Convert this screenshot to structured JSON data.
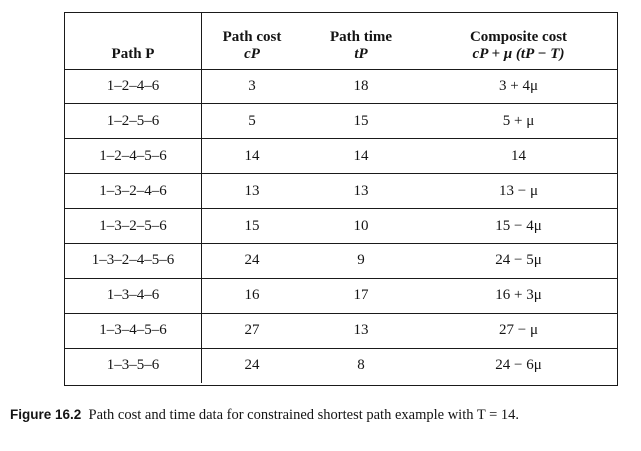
{
  "table": {
    "headers": {
      "path": {
        "line1": "Path P"
      },
      "cost": {
        "line1": "Path cost",
        "line2": "cP"
      },
      "time": {
        "line1": "Path time",
        "line2": "tP"
      },
      "composite": {
        "line1": "Composite cost",
        "line2": "cP + μ (tP − T)"
      }
    },
    "rows": [
      {
        "path": "1–2–4–6",
        "cost": "3",
        "time": "18",
        "composite": "3 + 4μ"
      },
      {
        "path": "1–2–5–6",
        "cost": "5",
        "time": "15",
        "composite": "5 + μ"
      },
      {
        "path": "1–2–4–5–6",
        "cost": "14",
        "time": "14",
        "composite": "14"
      },
      {
        "path": "1–3–2–4–6",
        "cost": "13",
        "time": "13",
        "composite": "13 − μ"
      },
      {
        "path": "1–3–2–5–6",
        "cost": "15",
        "time": "10",
        "composite": "15 − 4μ"
      },
      {
        "path": "1–3–2–4–5–6",
        "cost": "24",
        "time": "9",
        "composite": "24 − 5μ"
      },
      {
        "path": "1–3–4–6",
        "cost": "16",
        "time": "17",
        "composite": "16 + 3μ"
      },
      {
        "path": "1–3–4–5–6",
        "cost": "27",
        "time": "13",
        "composite": "27 − μ"
      },
      {
        "path": "1–3–5–6",
        "cost": "24",
        "time": "8",
        "composite": "24 − 6μ"
      }
    ]
  },
  "caption": {
    "label": "Figure 16.2",
    "text": "Path cost and time data for constrained shortest path example with T = 14."
  }
}
